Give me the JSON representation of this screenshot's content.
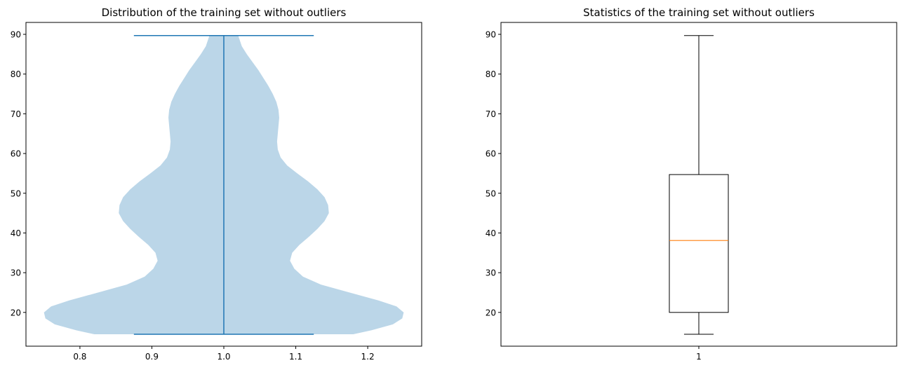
{
  "chart_data": [
    {
      "type": "violin",
      "title": "Distribution of the training set without outliers",
      "xlabel": "",
      "ylabel": "",
      "xlim": [
        0.725,
        1.275
      ],
      "ylim": [
        11.5,
        93
      ],
      "x_ticks": [
        {
          "value": 0.8,
          "label": "0.8"
        },
        {
          "value": 0.9,
          "label": "0.9"
        },
        {
          "value": 1.0,
          "label": "1.0"
        },
        {
          "value": 1.1,
          "label": "1.1"
        },
        {
          "value": 1.2,
          "label": "1.2"
        }
      ],
      "y_ticks": [
        {
          "value": 20,
          "label": "20"
        },
        {
          "value": 30,
          "label": "30"
        },
        {
          "value": 40,
          "label": "40"
        },
        {
          "value": 50,
          "label": "50"
        },
        {
          "value": 60,
          "label": "60"
        },
        {
          "value": 70,
          "label": "70"
        },
        {
          "value": 80,
          "label": "80"
        },
        {
          "value": 90,
          "label": "90"
        }
      ],
      "position": 1.0,
      "min": 14.5,
      "max": 89.7,
      "density_profile": [
        {
          "y": 14.5,
          "half_width": 0.18
        },
        {
          "y": 15.5,
          "half_width": 0.205
        },
        {
          "y": 17.0,
          "half_width": 0.235
        },
        {
          "y": 18.5,
          "half_width": 0.248
        },
        {
          "y": 20.0,
          "half_width": 0.25
        },
        {
          "y": 21.5,
          "half_width": 0.24
        },
        {
          "y": 23.0,
          "half_width": 0.215
        },
        {
          "y": 25.0,
          "half_width": 0.175
        },
        {
          "y": 27.0,
          "half_width": 0.135
        },
        {
          "y": 29.0,
          "half_width": 0.11
        },
        {
          "y": 31.0,
          "half_width": 0.098
        },
        {
          "y": 33.0,
          "half_width": 0.092
        },
        {
          "y": 35.0,
          "half_width": 0.095
        },
        {
          "y": 37.0,
          "half_width": 0.105
        },
        {
          "y": 39.0,
          "half_width": 0.118
        },
        {
          "y": 41.0,
          "half_width": 0.13
        },
        {
          "y": 43.0,
          "half_width": 0.14
        },
        {
          "y": 45.0,
          "half_width": 0.146
        },
        {
          "y": 47.0,
          "half_width": 0.145
        },
        {
          "y": 49.0,
          "half_width": 0.14
        },
        {
          "y": 51.0,
          "half_width": 0.13
        },
        {
          "y": 53.0,
          "half_width": 0.117
        },
        {
          "y": 55.0,
          "half_width": 0.102
        },
        {
          "y": 57.0,
          "half_width": 0.088
        },
        {
          "y": 59.0,
          "half_width": 0.079
        },
        {
          "y": 61.0,
          "half_width": 0.075
        },
        {
          "y": 63.0,
          "half_width": 0.074
        },
        {
          "y": 65.0,
          "half_width": 0.075
        },
        {
          "y": 67.0,
          "half_width": 0.076
        },
        {
          "y": 69.0,
          "half_width": 0.077
        },
        {
          "y": 71.0,
          "half_width": 0.076
        },
        {
          "y": 73.0,
          "half_width": 0.073
        },
        {
          "y": 75.0,
          "half_width": 0.068
        },
        {
          "y": 77.0,
          "half_width": 0.062
        },
        {
          "y": 79.0,
          "half_width": 0.055
        },
        {
          "y": 81.0,
          "half_width": 0.048
        },
        {
          "y": 83.0,
          "half_width": 0.04
        },
        {
          "y": 85.0,
          "half_width": 0.032
        },
        {
          "y": 87.0,
          "half_width": 0.025
        },
        {
          "y": 89.7,
          "half_width": 0.02
        }
      ],
      "colors": {
        "body": "#1f77b4",
        "body_alpha": 0.3,
        "lines": "#1f77b4"
      }
    },
    {
      "type": "box",
      "title": "Statistics of the training set without outliers",
      "xlabel": "",
      "ylabel": "",
      "xlim": [
        0.5,
        1.5
      ],
      "ylim": [
        11.5,
        93
      ],
      "x_ticks": [
        {
          "value": 1,
          "label": "1"
        }
      ],
      "y_ticks": [
        {
          "value": 20,
          "label": "20"
        },
        {
          "value": 30,
          "label": "30"
        },
        {
          "value": 40,
          "label": "40"
        },
        {
          "value": 50,
          "label": "50"
        },
        {
          "value": 60,
          "label": "60"
        },
        {
          "value": 70,
          "label": "70"
        },
        {
          "value": 80,
          "label": "80"
        },
        {
          "value": 90,
          "label": "90"
        }
      ],
      "position": 1,
      "whisker_low": 14.5,
      "q1": 20.0,
      "median": 38.1,
      "q3": 54.7,
      "whisker_high": 89.7,
      "colors": {
        "box": "#000000",
        "median": "#ff7f0e"
      }
    }
  ]
}
